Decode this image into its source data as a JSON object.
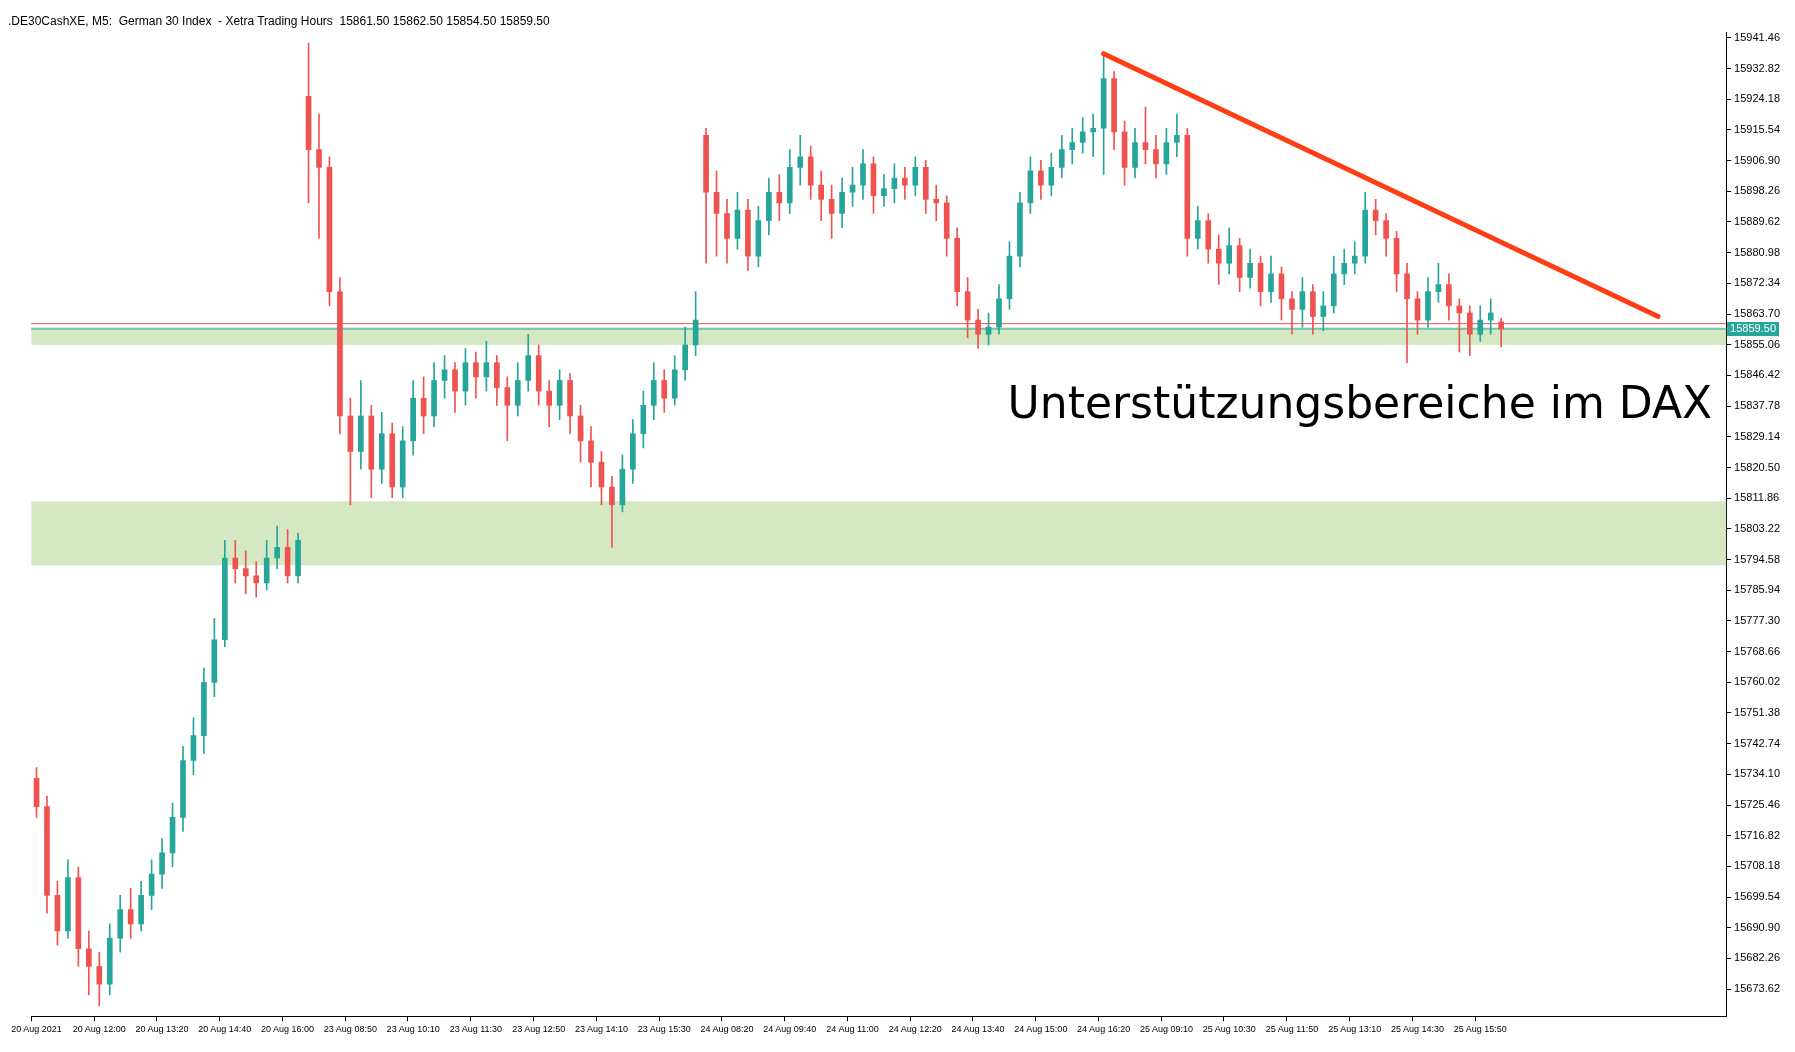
{
  "chart_data": {
    "type": "candlestick",
    "title": ".DE30CashXE, M5:  German 30 Index  - Xetra Trading Hours  15861.50 15862.50 15854.50 15859.50",
    "annotations": [
      "Unterstützungsbereiche im DAX"
    ],
    "colors": [
      "#ef5350",
      "#ef5350",
      "#ef5350",
      "#26a69a",
      "#ef5350",
      "#ef5350",
      "#ef5350",
      "#26a69a",
      "#26a69a",
      "#ef5350",
      "#26a69a",
      "#26a69a",
      "#26a69a",
      "#26a69a",
      "#26a69a",
      "#26a69a",
      "#26a69a",
      "#26a69a",
      "#26a69a",
      "#ef5350",
      "#ef5350",
      "#ef5350",
      "#26a69a",
      "#26a69a",
      "#ef5350",
      "#26a69a",
      "#ef5350",
      "#ef5350",
      "#ef5350",
      "#ef5350",
      "#ef5350",
      "#26a69a",
      "#ef5350",
      "#26a69a",
      "#ef5350",
      "#26a69a",
      "#26a69a",
      "#ef5350",
      "#26a69a",
      "#26a69a",
      "#ef5350",
      "#26a69a",
      "#ef5350",
      "#26a69a",
      "#ef5350",
      "#ef5350",
      "#26a69a",
      "#26a69a",
      "#ef5350",
      "#ef5350",
      "#26a69a",
      "#ef5350",
      "#ef5350",
      "#ef5350",
      "#ef5350",
      "#ef5350",
      "#26a69a",
      "#26a69a",
      "#26a69a",
      "#26a69a",
      "#ef5350",
      "#26a69a",
      "#26a69a",
      "#26a69a",
      "#ef5350",
      "#ef5350",
      "#ef5350",
      "#26a69a",
      "#ef5350",
      "#26a69a",
      "#26a69a",
      "#ef5350",
      "#26a69a",
      "#26a69a",
      "#ef5350",
      "#ef5350",
      "#ef5350",
      "#26a69a",
      "#26a69a",
      "#26a69a",
      "#ef5350",
      "#26a69a",
      "#26a69a",
      "#ef5350",
      "#26a69a",
      "#ef5350",
      "#ef5350",
      "#ef5350",
      "#ef5350",
      "#ef5350",
      "#ef5350",
      "#26a69a",
      "#26a69a",
      "#26a69a",
      "#26a69a",
      "#26a69a",
      "#ef5350",
      "#26a69a",
      "#26a69a",
      "#26a69a",
      "#26a69a",
      "#26a69a",
      "#26a69a",
      "#ef5350",
      "#ef5350",
      "#26a69a",
      "#ef5350",
      "#ef5350",
      "#26a69a",
      "#26a69a",
      "#ef5350",
      "#26a69a",
      "#ef5350",
      "#ef5350",
      "#26a69a",
      "#ef5350",
      "#26a69a",
      "#ef5350",
      "#26a69a",
      "#ef5350",
      "#ef5350",
      "#26a69a",
      "#ef5350",
      "#26a69a",
      "#26a69a",
      "#26a69a",
      "#26a69a",
      "#26a69a",
      "#ef5350",
      "#ef5350",
      "#ef5350",
      "#ef5350",
      "#ef5350",
      "#26a69a",
      "#26a69a",
      "#ef5350",
      "#ef5350",
      "#ef5350",
      "#26a69a",
      "#26a69a",
      "#ef5350",
      null,
      null,
      null,
      null,
      null,
      null,
      null,
      null,
      null,
      null,
      null,
      null,
      null,
      null,
      null,
      null,
      null,
      null,
      null,
      null,
      null
    ],
    "categories": [
      "20 Aug 2021",
      null,
      null,
      null,
      null,
      null,
      "20 Aug 12:00",
      null,
      null,
      null,
      null,
      null,
      "20 Aug 13:20",
      null,
      null,
      null,
      null,
      null,
      "20 Aug 14:40",
      null,
      null,
      null,
      null,
      null,
      "20 Aug 16:00",
      null,
      null,
      null,
      null,
      null,
      "23 Aug 08:50",
      null,
      null,
      null,
      null,
      null,
      "23 Aug 10:10",
      null,
      null,
      null,
      null,
      null,
      "23 Aug 11:30",
      null,
      null,
      null,
      null,
      null,
      "23 Aug 12:50",
      null,
      null,
      null,
      null,
      null,
      "23 Aug 14:10",
      null,
      null,
      null,
      null,
      null,
      "23 Aug 15:30",
      null,
      null,
      null,
      null,
      null,
      "24 Aug 08:20",
      null,
      null,
      null,
      null,
      null,
      "24 Aug 09:40",
      null,
      null,
      null,
      null,
      null,
      "24 Aug 11:00",
      null,
      null,
      null,
      null,
      null,
      "24 Aug 12:20",
      null,
      null,
      null,
      null,
      null,
      "24 Aug 13:40",
      null,
      null,
      null,
      null,
      null,
      "24 Aug 15:00",
      null,
      null,
      null,
      null,
      null,
      "24 Aug 16:20",
      null,
      null,
      null,
      null,
      null,
      "25 Aug 09:10",
      null,
      null,
      null,
      null,
      null,
      "25 Aug 10:30",
      null,
      null,
      null,
      null,
      null,
      "25 Aug 11:50",
      null,
      null,
      null,
      null,
      null,
      "25 Aug 13:10",
      null,
      null,
      null,
      null,
      null,
      "25 Aug 14:30",
      null,
      null,
      null,
      null,
      null,
      "25 Aug 15:50",
      null,
      null,
      null,
      null,
      null,
      null,
      null,
      null,
      null,
      null,
      null,
      null,
      null,
      null,
      null,
      null,
      null,
      null,
      null,
      null,
      null,
      null,
      null
    ],
    "ohlc": [
      [
        15733,
        15736,
        15722,
        15725
      ],
      [
        15725,
        15728,
        15695,
        15700
      ],
      [
        15700,
        15704,
        15686,
        15690
      ],
      [
        15690,
        15710,
        15688,
        15705
      ],
      [
        15705,
        15708,
        15680,
        15685
      ],
      [
        15685,
        15690,
        15672,
        15680
      ],
      [
        15680,
        15684,
        15669,
        15675
      ],
      [
        15675,
        15692,
        15672,
        15688
      ],
      [
        15688,
        15700,
        15684,
        15696
      ],
      [
        15696,
        15702,
        15688,
        15692
      ],
      [
        15692,
        15704,
        15690,
        15700
      ],
      [
        15700,
        15710,
        15696,
        15706
      ],
      [
        15706,
        15716,
        15702,
        15712
      ],
      [
        15712,
        15726,
        15708,
        15722
      ],
      [
        15722,
        15742,
        15718,
        15738
      ],
      [
        15738,
        15750,
        15734,
        15745
      ],
      [
        15745,
        15764,
        15740,
        15760
      ],
      [
        15760,
        15778,
        15756,
        15772
      ],
      [
        15772,
        15800,
        15770,
        15795
      ],
      [
        15795,
        15800,
        15788,
        15792
      ],
      [
        15792,
        15797,
        15785,
        15790
      ],
      [
        15790,
        15794,
        15784,
        15788
      ],
      [
        15788,
        15800,
        15786,
        15795
      ],
      [
        15795,
        15804,
        15792,
        15798
      ],
      [
        15798,
        15803,
        15788,
        15790
      ],
      [
        15790,
        15802,
        15788,
        15800
      ],
      [
        15925,
        15940,
        15895,
        15910
      ],
      [
        15910,
        15920,
        15885,
        15905
      ],
      [
        15905,
        15908,
        15866,
        15870
      ],
      [
        15870,
        15874,
        15830,
        15835
      ],
      [
        15835,
        15840,
        15810,
        15825
      ],
      [
        15825,
        15845,
        15820,
        15835
      ],
      [
        15835,
        15838,
        15812,
        15820
      ],
      [
        15820,
        15836,
        15816,
        15830
      ],
      [
        15830,
        15833,
        15812,
        15815
      ],
      [
        15815,
        15832,
        15812,
        15828
      ],
      [
        15828,
        15845,
        15824,
        15840
      ],
      [
        15840,
        15846,
        15830,
        15835
      ],
      [
        15835,
        15850,
        15832,
        15845
      ],
      [
        15845,
        15852,
        15840,
        15848
      ],
      [
        15848,
        15850,
        15836,
        15842
      ],
      [
        15842,
        15854,
        15838,
        15850
      ],
      [
        15850,
        15853,
        15840,
        15846
      ],
      [
        15846,
        15856,
        15842,
        15850
      ],
      [
        15850,
        15852,
        15838,
        15843
      ],
      [
        15843,
        15846,
        15828,
        15838
      ],
      [
        15838,
        15850,
        15835,
        15845
      ],
      [
        15845,
        15858,
        15842,
        15852
      ],
      [
        15852,
        15855,
        15838,
        15842
      ],
      [
        15842,
        15845,
        15832,
        15838
      ],
      [
        15838,
        15848,
        15834,
        15845
      ],
      [
        15845,
        15847,
        15830,
        15835
      ],
      [
        15835,
        15838,
        15822,
        15828
      ],
      [
        15828,
        15832,
        15815,
        15822
      ],
      [
        15822,
        15825,
        15810,
        15815
      ],
      [
        15815,
        15818,
        15798,
        15810
      ],
      [
        15810,
        15824,
        15808,
        15820
      ],
      [
        15820,
        15834,
        15816,
        15830
      ],
      [
        15830,
        15842,
        15826,
        15838
      ],
      [
        15838,
        15850,
        15834,
        15845
      ],
      [
        15845,
        15848,
        15836,
        15840
      ],
      [
        15840,
        15852,
        15838,
        15848
      ],
      [
        15848,
        15860,
        15845,
        15855
      ],
      [
        15855,
        15870,
        15852,
        15862
      ],
      [
        15914,
        15916,
        15878,
        15898
      ],
      [
        15898,
        15904,
        15880,
        15892
      ],
      [
        15892,
        15896,
        15878,
        15885
      ],
      [
        15885,
        15898,
        15882,
        15893
      ],
      [
        15893,
        15896,
        15876,
        15880
      ],
      [
        15880,
        15894,
        15877,
        15890
      ],
      [
        15890,
        15902,
        15886,
        15898
      ],
      [
        15898,
        15903,
        15890,
        15895
      ],
      [
        15895,
        15910,
        15892,
        15905
      ],
      [
        15905,
        15914,
        15900,
        15908
      ],
      [
        15908,
        15911,
        15896,
        15900
      ],
      [
        15900,
        15904,
        15890,
        15896
      ],
      [
        15896,
        15900,
        15885,
        15892
      ],
      [
        15892,
        15902,
        15888,
        15898
      ],
      [
        15898,
        15905,
        15894,
        15900
      ],
      [
        15900,
        15910,
        15896,
        15906
      ],
      [
        15906,
        15908,
        15892,
        15897
      ],
      [
        15897,
        15903,
        15894,
        15899
      ],
      [
        15899,
        15906,
        15895,
        15902
      ],
      [
        15902,
        15905,
        15896,
        15900
      ],
      [
        15900,
        15908,
        15897,
        15905
      ],
      [
        15905,
        15907,
        15892,
        15896
      ],
      [
        15896,
        15900,
        15890,
        15895
      ],
      [
        15895,
        15897,
        15880,
        15885
      ],
      [
        15885,
        15888,
        15866,
        15870
      ],
      [
        15870,
        15874,
        15857,
        15862
      ],
      [
        15862,
        15865,
        15854,
        15858
      ],
      [
        15858,
        15864,
        15855,
        15860
      ],
      [
        15860,
        15872,
        15858,
        15868
      ],
      [
        15868,
        15884,
        15865,
        15880
      ],
      [
        15880,
        15898,
        15877,
        15895
      ],
      [
        15895,
        15908,
        15892,
        15904
      ],
      [
        15904,
        15907,
        15896,
        15900
      ],
      [
        15900,
        15909,
        15897,
        15905
      ],
      [
        15905,
        15914,
        15902,
        15910
      ],
      [
        15910,
        15916,
        15906,
        15912
      ],
      [
        15912,
        15919,
        15909,
        15915
      ],
      [
        15915,
        15920,
        15908,
        15916
      ],
      [
        15916,
        15937,
        15903,
        15930
      ],
      [
        15930,
        15932,
        15910,
        15915
      ],
      [
        15915,
        15918,
        15900,
        15905
      ],
      [
        15905,
        15916,
        15902,
        15912
      ],
      [
        15912,
        15922,
        15906,
        15910
      ],
      [
        15910,
        15914,
        15902,
        15906
      ],
      [
        15906,
        15916,
        15903,
        15912
      ],
      [
        15912,
        15920,
        15908,
        15914
      ],
      [
        15914,
        15916,
        15880,
        15885
      ],
      [
        15885,
        15894,
        15882,
        15890
      ],
      [
        15890,
        15892,
        15878,
        15882
      ],
      [
        15882,
        15886,
        15872,
        15878
      ],
      [
        15878,
        15888,
        15875,
        15883
      ],
      [
        15883,
        15885,
        15870,
        15874
      ],
      [
        15874,
        15882,
        15871,
        15878
      ],
      [
        15878,
        15880,
        15866,
        15870
      ],
      [
        15870,
        15880,
        15867,
        15875
      ],
      [
        15875,
        15877,
        15862,
        15868
      ],
      [
        15868,
        15870,
        15858,
        15865
      ],
      [
        15865,
        15874,
        15860,
        15870
      ],
      [
        15870,
        15872,
        15858,
        15863
      ],
      [
        15863,
        15870,
        15859,
        15866
      ],
      [
        15866,
        15880,
        15864,
        15875
      ],
      [
        15875,
        15882,
        15872,
        15878
      ],
      [
        15878,
        15884,
        15875,
        15880
      ],
      [
        15880,
        15898,
        15878,
        15893
      ],
      [
        15893,
        15896,
        15886,
        15890
      ],
      [
        15890,
        15892,
        15880,
        15885
      ],
      [
        15885,
        15887,
        15870,
        15875
      ],
      [
        15875,
        15878,
        15850,
        15868
      ],
      [
        15868,
        15870,
        15858,
        15862
      ],
      [
        15862,
        15874,
        15860,
        15870
      ],
      [
        15870,
        15878,
        15867,
        15872
      ],
      [
        15872,
        15875,
        15862,
        15866
      ],
      [
        15866,
        15868,
        15853,
        15864
      ],
      [
        15864,
        15866,
        15852,
        15858
      ],
      [
        15858,
        15866,
        15856,
        15862
      ],
      [
        15862,
        15868,
        15858,
        15864
      ],
      [
        15861.5,
        15862.5,
        15854.5,
        15859.5
      ],
      null,
      null,
      null,
      null,
      null,
      null,
      null,
      null,
      null,
      null,
      null,
      null,
      null,
      null,
      null,
      null,
      null,
      null,
      null,
      null,
      null
    ],
    "series": [
      {
        "type": "line",
        "color": "#ff3d17",
        "values": [
          null,
          null,
          null,
          null,
          null,
          null,
          null,
          null,
          null,
          null,
          null,
          null,
          null,
          null,
          null,
          null,
          null,
          null,
          null,
          null,
          null,
          null,
          null,
          null,
          null,
          null,
          null,
          null,
          null,
          null,
          null,
          null,
          null,
          null,
          null,
          null,
          null,
          null,
          null,
          null,
          null,
          null,
          null,
          null,
          null,
          null,
          null,
          null,
          null,
          null,
          null,
          null,
          null,
          null,
          null,
          null,
          null,
          null,
          null,
          null,
          null,
          null,
          null,
          null,
          null,
          null,
          null,
          null,
          null,
          null,
          null,
          null,
          null,
          null,
          null,
          null,
          null,
          null,
          null,
          null,
          null,
          null,
          null,
          null,
          null,
          null,
          null,
          null,
          null,
          null,
          null,
          null,
          null,
          null,
          null,
          null,
          null,
          null,
          null,
          null,
          null,
          null,
          15937,
          null,
          null,
          null,
          null,
          null,
          null,
          null,
          null,
          null,
          null,
          null,
          null,
          null,
          null,
          null,
          null,
          null,
          null,
          null,
          null,
          null,
          null,
          null,
          null,
          null,
          null,
          null,
          null,
          null,
          null,
          null,
          null,
          null,
          null,
          null,
          null,
          null,
          null,
          null,
          null,
          null,
          null,
          null,
          null,
          null,
          null,
          null,
          null,
          null,
          null,
          null,
          null,
          15863,
          null,
          null,
          null,
          null,
          null,
          null
        ]
      }
    ],
    "ylim": [
      15666,
      15943
    ],
    "yticks": [
      15673.62,
      15682.26,
      {
        "value": 15690.9,
        "label": "15690.90"
      },
      15699.54,
      15708.18,
      15716.82,
      15725.46,
      {
        "value": 15734.1,
        "label": "15734.10"
      },
      15742.74,
      15751.38,
      15760.02,
      15768.66,
      {
        "value": 15777.3,
        "label": "15777.30"
      },
      15785.94,
      15794.58,
      15803.22,
      15811.86,
      {
        "value": 15820.5,
        "label": "15820.50"
      },
      15829.14,
      15837.78,
      15846.42,
      15855.06,
      {
        "value": 15863.7,
        "label": "15863.70"
      },
      15872.34,
      15880.98,
      15889.62,
      15898.26,
      {
        "value": 15906.9,
        "label": "15906.90"
      },
      15915.54,
      15924.18,
      15932.82,
      15941.46
    ],
    "bands": [
      {
        "axis": "y",
        "from": 15855,
        "to": 15860,
        "color": "#d5e8c4"
      },
      {
        "axis": "y",
        "from": 15793,
        "to": 15811,
        "color": "#d5e8c4"
      }
    ],
    "ref_lines": [
      {
        "axis": "y",
        "value": 15861,
        "label": null,
        "color": "#ef5350"
      },
      {
        "axis": "y",
        "value": 15859.5,
        "label": "15859.50",
        "color": "#26a69a"
      }
    ],
    "grid": false
  }
}
